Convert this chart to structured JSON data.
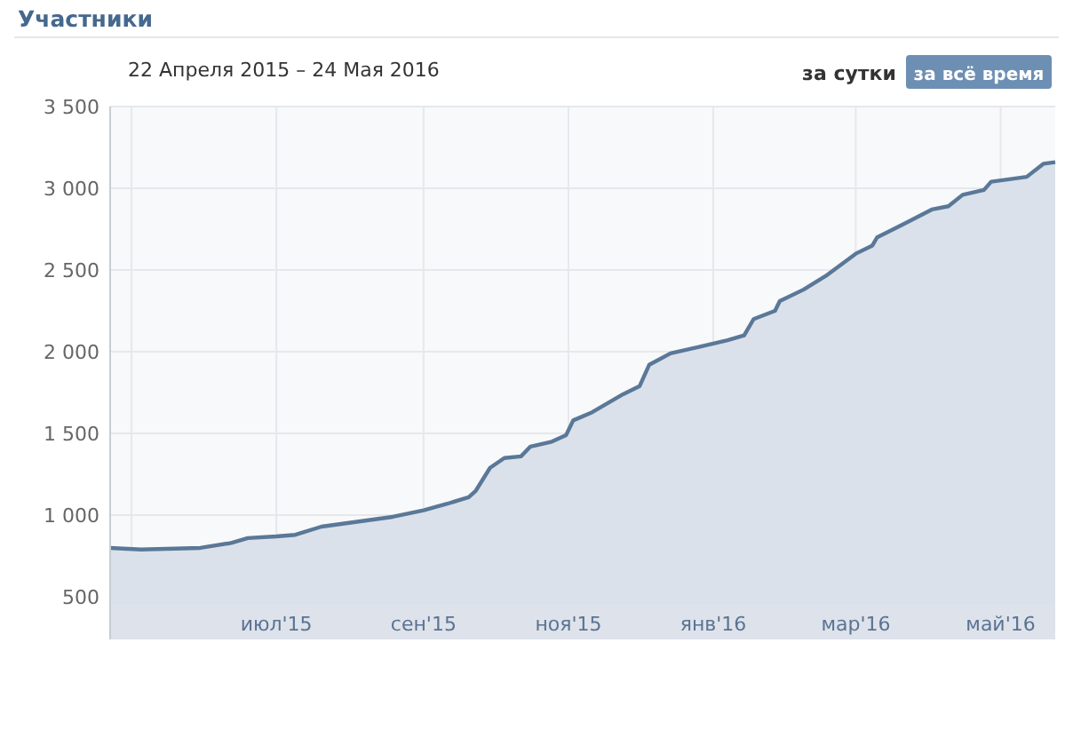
{
  "chart_data": {
    "type": "area",
    "title": "Участники",
    "subtitle": "22 Апреля 2015 – 24 Мая 2016",
    "annotations": [
      "за сутки",
      "за всё время"
    ],
    "x": [
      "2015-04-22",
      "2015-05-05",
      "2015-05-30",
      "2015-06-12",
      "2015-06-19",
      "2015-07-01",
      "2015-07-09",
      "2015-07-20",
      "2015-08-04",
      "2015-08-19",
      "2015-09-01",
      "2015-09-11",
      "2015-09-20",
      "2015-09-23",
      "2015-09-29",
      "2015-10-05",
      "2015-10-12",
      "2015-10-16",
      "2015-10-25",
      "2015-10-31",
      "2015-11-03",
      "2015-11-11",
      "2015-11-24",
      "2015-12-01",
      "2015-12-05",
      "2015-12-14",
      "2015-12-26",
      "2016-01-07",
      "2016-01-14",
      "2016-01-18",
      "2016-01-27",
      "2016-01-29",
      "2016-02-08",
      "2016-02-18",
      "2016-03-01",
      "2016-03-08",
      "2016-03-10",
      "2016-03-21",
      "2016-04-02",
      "2016-04-09",
      "2016-04-15",
      "2016-04-24",
      "2016-04-27",
      "2016-05-12",
      "2016-05-19",
      "2016-05-24"
    ],
    "series": [
      {
        "color": "#5a7898",
        "values": [
          800,
          790,
          800,
          830,
          860,
          870,
          880,
          930,
          960,
          990,
          1030,
          1070,
          1110,
          1150,
          1290,
          1350,
          1360,
          1420,
          1450,
          1490,
          1580,
          1630,
          1740,
          1790,
          1920,
          1990,
          2030,
          2070,
          2100,
          2200,
          2250,
          2310,
          2380,
          2470,
          2600,
          2650,
          2700,
          2780,
          2870,
          2890,
          2960,
          2990,
          3040,
          3070,
          3150,
          3160
        ]
      }
    ],
    "xlim": [
      "2015-04-22",
      "2016-05-24"
    ],
    "xticks": [
      {
        "value": "2015-05-01",
        "label": null
      },
      {
        "value": "2015-07-01",
        "label": "июл'15"
      },
      {
        "value": "2015-09-01",
        "label": "сен'15"
      },
      {
        "value": "2015-11-01",
        "label": "ноя'15"
      },
      {
        "value": "2016-01-01",
        "label": "янв'16"
      },
      {
        "value": "2016-03-01",
        "label": "мар'16"
      },
      {
        "value": "2016-05-01",
        "label": "май'16"
      }
    ],
    "ylim": [
      240,
      3500
    ],
    "yticks": [
      500,
      {
        "value": 1000,
        "label": "1 000"
      },
      {
        "value": 1500,
        "label": "1 500"
      },
      {
        "value": 2000,
        "label": "2 000"
      },
      {
        "value": 2500,
        "label": "2 500"
      },
      {
        "value": 3000,
        "label": "3 000"
      },
      {
        "value": 3500,
        "label": "3 500"
      }
    ],
    "grid": true
  }
}
